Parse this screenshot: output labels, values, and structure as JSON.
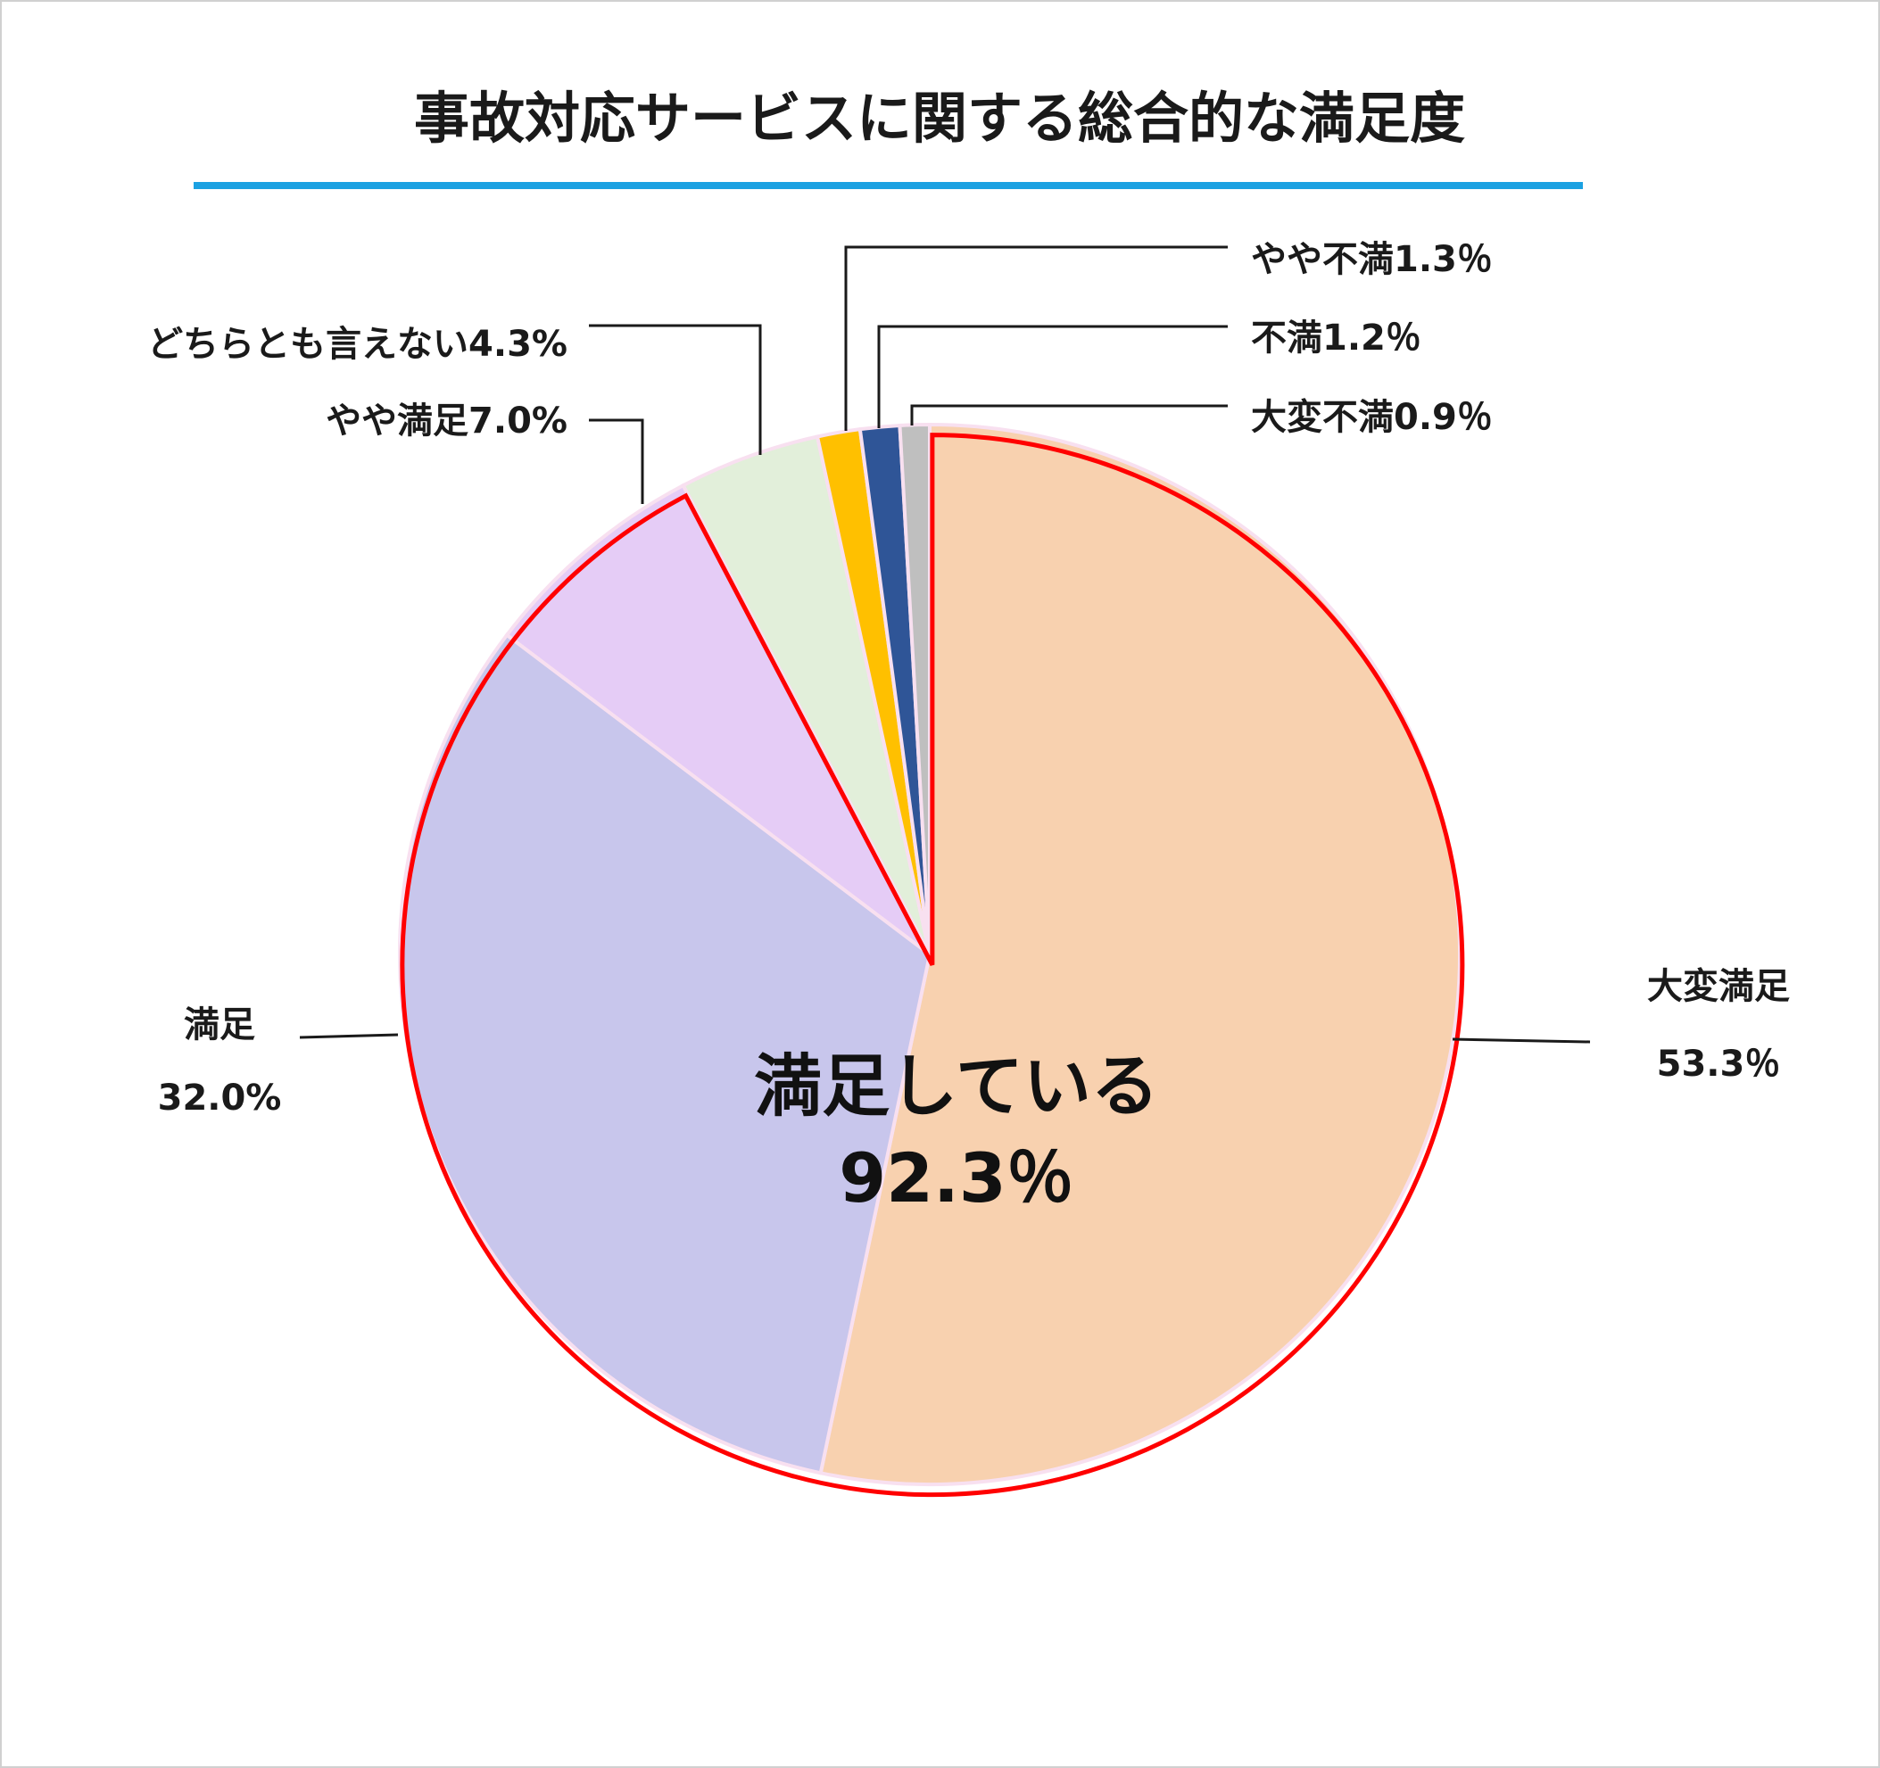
{
  "chart_data": {
    "type": "pie",
    "title": "事故対応サービスに関する総合的な満足度",
    "slices": [
      {
        "label": "大変満足",
        "value": 53.3,
        "value_text": "53.3％",
        "color": "#F8D1AF"
      },
      {
        "label": "満足",
        "value": 32.0,
        "value_text": "32.0%",
        "color": "#C8C6EC"
      },
      {
        "label": "やや満足",
        "value": 7.0,
        "value_text": "7.0%",
        "color": "#E5CCF6"
      },
      {
        "label": "どちらとも言えない",
        "value": 4.3,
        "value_text": "4.3%",
        "color": "#E2EFDA"
      },
      {
        "label": "やや不満",
        "value": 1.3,
        "value_text": "1.3％",
        "color": "#FFC000"
      },
      {
        "label": "不満",
        "value": 1.2,
        "value_text": "1.2％",
        "color": "#2F5597"
      },
      {
        "label": "大変不満",
        "value": 0.9,
        "value_text": "0.9％",
        "color": "#BFBFBF"
      }
    ],
    "highlight": {
      "label": "満足している",
      "value_text": "92.3％",
      "value": 92.3,
      "border_color": "#FF0000"
    },
    "title_underline_color": "#1BA1E2",
    "slice_separator_color": "#F8E0F0"
  }
}
